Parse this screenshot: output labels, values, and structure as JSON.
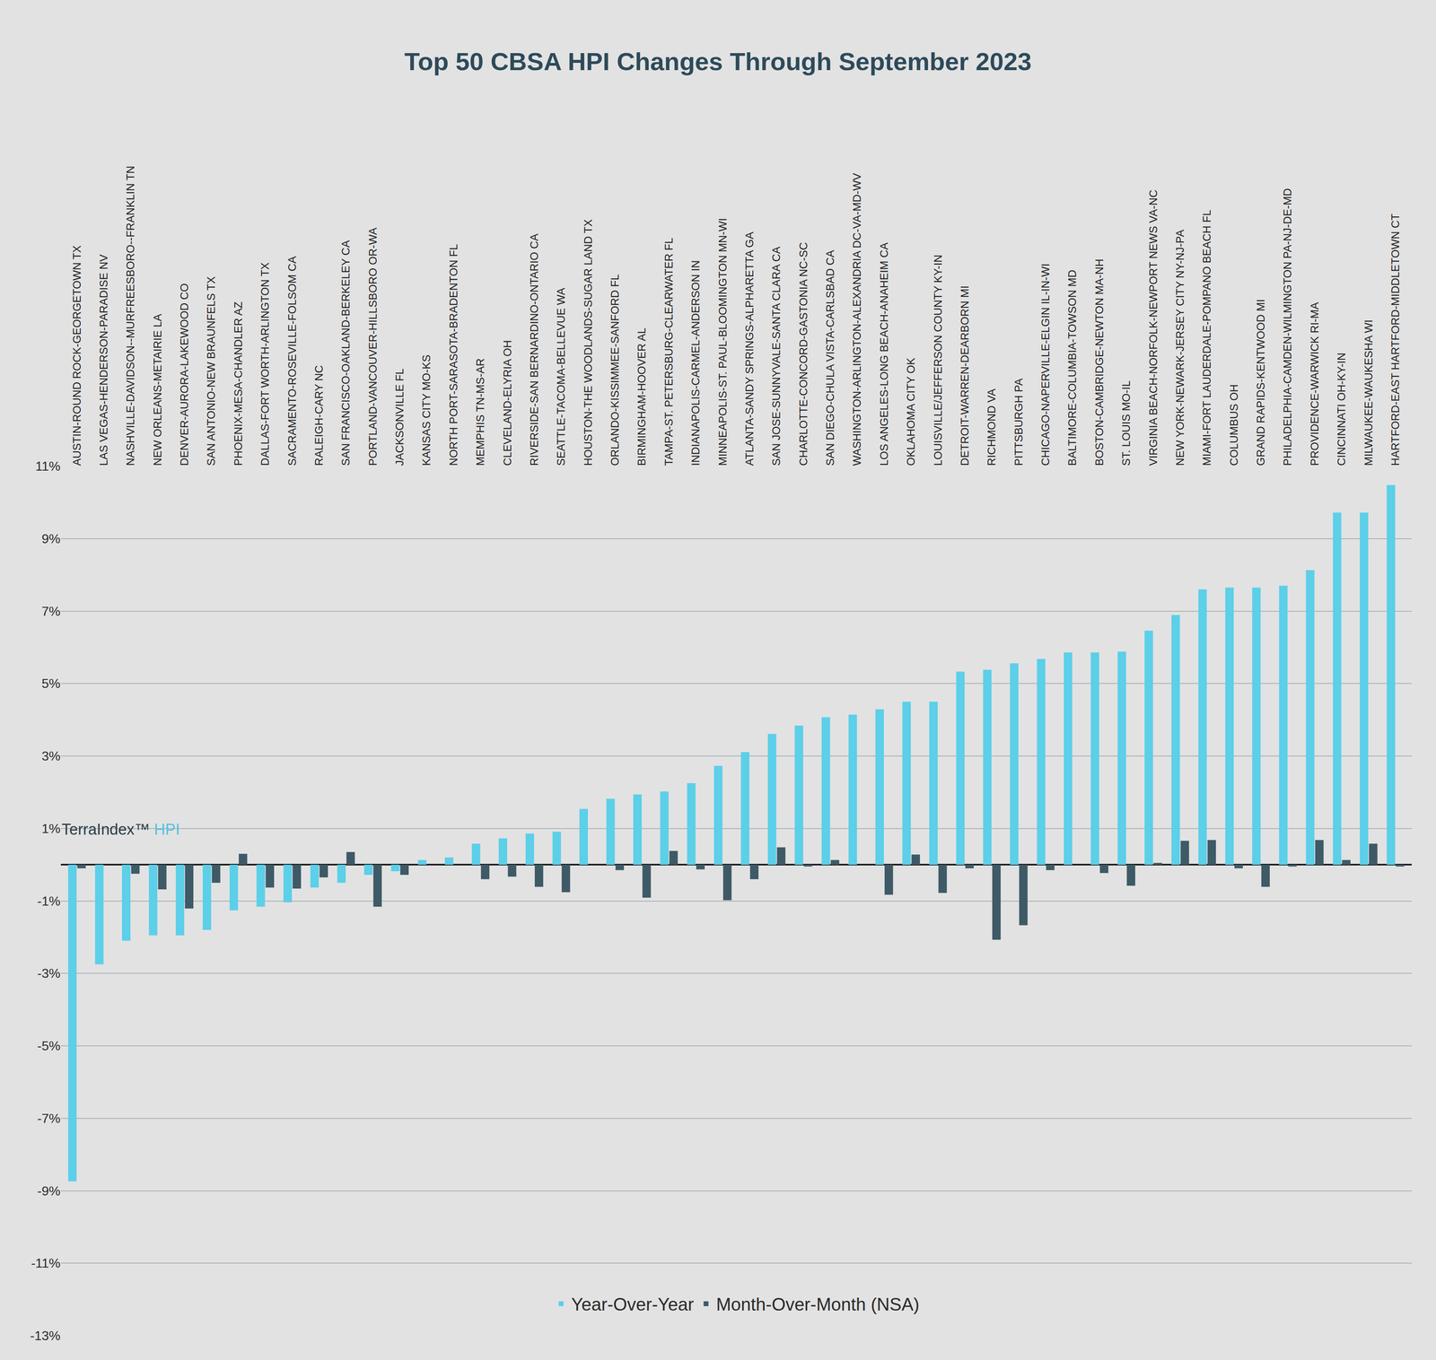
{
  "chart_data": {
    "type": "bar",
    "title": "Top 50 CBSA HPI Changes Through September 2023",
    "annotations": [
      "TerraIndex™",
      "HPI"
    ],
    "categories": [
      "AUSTIN-ROUND ROCK-GEORGETOWN TX",
      "LAS VEGAS-HENDERSON-PARADISE NV",
      "NASHVILLE-DAVIDSON--MURFREESBORO--FRANKLIN TN",
      "NEW ORLEANS-METAIRIE LA",
      "DENVER-AURORA-LAKEWOOD CO",
      "SAN ANTONIO-NEW BRAUNFELS TX",
      "PHOENIX-MESA-CHANDLER AZ",
      "DALLAS-FORT WORTH-ARLINGTON TX",
      "SACRAMENTO-ROSEVILLE-FOLSOM CA",
      "RALEIGH-CARY NC",
      "SAN FRANCISCO-OAKLAND-BERKELEY CA",
      "PORTLAND-VANCOUVER-HILLSBORO OR-WA",
      "JACKSONVILLE FL",
      "KANSAS CITY MO-KS",
      "NORTH PORT-SARASOTA-BRADENTON FL",
      "MEMPHIS TN-MS-AR",
      "CLEVELAND-ELYRIA OH",
      "RIVERSIDE-SAN BERNARDINO-ONTARIO CA",
      "SEATTLE-TACOMA-BELLEVUE WA",
      "HOUSTON-THE WOODLANDS-SUGAR LAND TX",
      "ORLANDO-KISSIMMEE-SANFORD FL",
      "BIRMINGHAM-HOOVER AL",
      "TAMPA-ST. PETERSBURG-CLEARWATER FL",
      "INDIANAPOLIS-CARMEL-ANDERSON IN",
      "MINNEAPOLIS-ST. PAUL-BLOOMINGTON MN-WI",
      "ATLANTA-SANDY SPRINGS-ALPHARETTA GA",
      "SAN JOSE-SUNNYVALE-SANTA CLARA CA",
      "CHARLOTTE-CONCORD-GASTONIA NC-SC",
      "SAN DIEGO-CHULA VISTA-CARLSBAD CA",
      "WASHINGTON-ARLINGTON-ALEXANDRIA DC-VA-MD-WV",
      "LOS ANGELES-LONG BEACH-ANAHEIM CA",
      "OKLAHOMA CITY OK",
      "LOUISVILLE/JEFFERSON COUNTY KY-IN",
      "DETROIT-WARREN-DEARBORN MI",
      "RICHMOND VA",
      "PITTSBURGH PA",
      "CHICAGO-NAPERVILLE-ELGIN IL-IN-WI",
      "BALTIMORE-COLUMBIA-TOWSON MD",
      "BOSTON-CAMBRIDGE-NEWTON MA-NH",
      "ST. LOUIS MO-IL",
      "VIRGINIA BEACH-NORFOLK-NEWPORT NEWS VA-NC",
      "NEW YORK-NEWARK-JERSEY CITY NY-NJ-PA",
      "MIAMI-FORT LAUDERDALE-POMPANO BEACH FL",
      "COLUMBUS OH",
      "GRAND RAPIDS-KENTWOOD MI",
      "PHILADELPHIA-CAMDEN-WILMINGTON PA-NJ-DE-MD",
      "PROVIDENCE-WARWICK RI-MA",
      "CINCINNATI OH-KY-IN",
      "MILWAUKEE-WAUKESHA WI",
      "HARTFORD-EAST HARTFORD-MIDDLETOWN CT"
    ],
    "series": [
      {
        "name": "Year-Over-Year",
        "color": "#5ccfe9",
        "values": [
          -8.74,
          -2.75,
          -2.1,
          -1.95,
          -1.95,
          -1.8,
          -1.26,
          -1.16,
          -1.04,
          -0.63,
          -0.5,
          -0.28,
          -0.18,
          0.13,
          0.2,
          0.58,
          0.73,
          0.86,
          0.91,
          1.54,
          1.82,
          1.94,
          2.02,
          2.25,
          2.73,
          3.11,
          3.61,
          3.84,
          4.07,
          4.14,
          4.29,
          4.5,
          4.5,
          5.33,
          5.38,
          5.56,
          5.68,
          5.86,
          5.86,
          5.88,
          6.46,
          6.89,
          7.6,
          7.65,
          7.65,
          7.7,
          8.13,
          9.72,
          9.72,
          10.48
        ]
      },
      {
        "name": "Month-Over-Month (NSA)",
        "color": "#3e5a66",
        "values": [
          -0.1,
          0,
          -0.25,
          -0.68,
          -1.21,
          -0.5,
          0.3,
          -0.63,
          -0.66,
          -0.35,
          0.35,
          -1.16,
          -0.28,
          0,
          0,
          -0.4,
          -0.33,
          -0.61,
          -0.76,
          0,
          -0.15,
          -0.91,
          0.38,
          -0.13,
          -0.98,
          -0.4,
          0.48,
          -0.05,
          0.13,
          0,
          -0.83,
          0.28,
          -0.78,
          -0.1,
          -2.07,
          -1.67,
          -0.15,
          0,
          -0.23,
          -0.58,
          0.05,
          0.66,
          0.68,
          -0.1,
          -0.61,
          -0.05,
          0.68,
          0.13,
          0.58,
          -0.05
        ]
      }
    ],
    "ylim": [
      -13,
      11
    ],
    "yticks": [
      {
        "value": -13,
        "label": "-13%"
      },
      {
        "value": -11,
        "label": "-11%"
      },
      {
        "value": -9,
        "label": "-9%"
      },
      {
        "value": -7,
        "label": "-7%"
      },
      {
        "value": -5,
        "label": "-5%"
      },
      {
        "value": -3,
        "label": "-3%"
      },
      {
        "value": -1,
        "label": "-1%"
      },
      {
        "value": 1,
        "label": "1%"
      },
      {
        "value": 3,
        "label": "3%"
      },
      {
        "value": 5,
        "label": "5%"
      },
      {
        "value": 7,
        "label": "7%"
      },
      {
        "value": 9,
        "label": "9%"
      },
      {
        "value": 11,
        "label": "11%"
      }
    ],
    "grid": true,
    "legend": "bottom"
  }
}
